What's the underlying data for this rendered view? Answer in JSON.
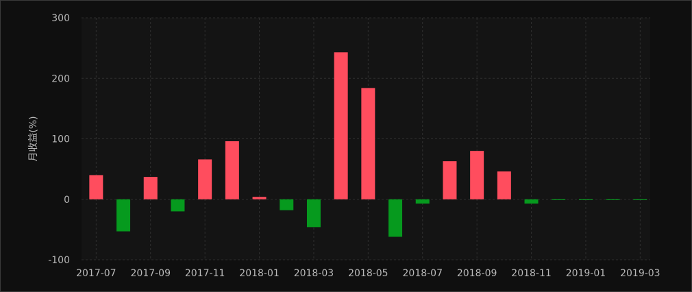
{
  "chart_data": {
    "type": "bar",
    "title": "",
    "xlabel": "",
    "ylabel": "月收益(%)",
    "ylim": [
      -100,
      300
    ],
    "yticks": [
      -100,
      0,
      100,
      200,
      300
    ],
    "grid": true,
    "legend": "none",
    "x_tick_labels": [
      "2017-07",
      "2017-09",
      "2017-11",
      "2018-01",
      "2018-03",
      "2018-05",
      "2018-07",
      "2018-09",
      "2018-11",
      "2019-01",
      "2019-03"
    ],
    "categories": [
      "2017-07",
      "2017-08",
      "2017-09",
      "2017-10",
      "2017-11",
      "2017-12",
      "2018-01",
      "2018-02",
      "2018-03",
      "2018-04",
      "2018-05",
      "2018-06",
      "2018-07",
      "2018-08",
      "2018-09",
      "2018-10",
      "2018-11",
      "2018-12",
      "2019-01",
      "2019-02",
      "2019-03"
    ],
    "values": [
      40,
      -53,
      37,
      -20,
      66,
      96,
      4,
      -18,
      -46,
      243,
      184,
      -62,
      -7,
      63,
      80,
      46,
      -7,
      -1,
      -1,
      -1,
      -1
    ],
    "colors": {
      "positive": "#ff4d5e",
      "negative": "#069a1e",
      "background": "#0f0f0f",
      "plot_background": "#141414",
      "grid": "#2e2e2e",
      "text": "#b8b8b8"
    }
  }
}
